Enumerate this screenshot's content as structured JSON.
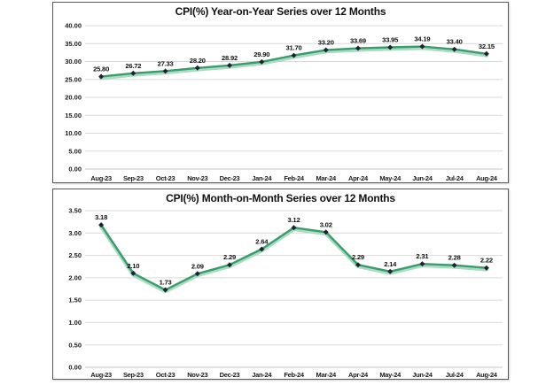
{
  "page": {
    "background": "#ffffff"
  },
  "chart_data": [
    {
      "type": "line",
      "title": "CPI(%) Year-on-Year Series over 12 Months",
      "categories": [
        "Aug-23",
        "Sep-23",
        "Oct-23",
        "Nov-23",
        "Dec-23",
        "Jan-24",
        "Feb-24",
        "Mar-24",
        "Apr-24",
        "May-24",
        "Jun-24",
        "Jul-24",
        "Aug-24"
      ],
      "values": [
        25.8,
        26.72,
        27.33,
        28.2,
        28.92,
        29.9,
        31.7,
        33.2,
        33.69,
        33.95,
        34.19,
        33.4,
        32.15
      ],
      "point_labels": [
        "25.80",
        "26.72",
        "27.33",
        "28.20",
        "28.92",
        "29.90",
        "31.70",
        "33.20",
        "33.69",
        "33.95",
        "34.19",
        "33.40",
        "32.15"
      ],
      "xlabel": "",
      "ylabel": "",
      "ylim": [
        0,
        40
      ],
      "yticks": [
        {
          "value": 40,
          "label": "40.00"
        },
        {
          "value": 35,
          "label": "35.00"
        },
        {
          "value": 30,
          "label": "30.00"
        },
        {
          "value": 25,
          "label": "25.00"
        },
        {
          "value": 20,
          "label": "20.00"
        },
        {
          "value": 15,
          "label": "15.00"
        },
        {
          "value": 10,
          "label": "10.00"
        },
        {
          "value": 5,
          "label": "5.00"
        },
        {
          "value": 0,
          "label": "0.00"
        }
      ],
      "grid": true,
      "legend": "none",
      "colors": {
        "line": "#3a9b6c",
        "halo": "#a9dcc2",
        "marker": "#1b2430",
        "grid": "#d9d9d9",
        "axis": "#c4c4c4",
        "text": "#1a1a1a"
      }
    },
    {
      "type": "line",
      "title": "CPI(%) Month-on-Month Series over 12 Months",
      "categories": [
        "Aug-23",
        "Sep-23",
        "Oct-23",
        "Nov-23",
        "Dec-23",
        "Jan-24",
        "Feb-24",
        "Mar-24",
        "Apr-24",
        "May-24",
        "Jun-24",
        "Jul-24",
        "Aug-24"
      ],
      "values": [
        3.18,
        2.1,
        1.73,
        2.09,
        2.29,
        2.64,
        3.12,
        3.02,
        2.29,
        2.14,
        2.31,
        2.28,
        2.22
      ],
      "point_labels": [
        "3.18",
        "2.10",
        "1.73",
        "2.09",
        "2.29",
        "2.64",
        "3.12",
        "3.02",
        "2.29",
        "2.14",
        "2.31",
        "2.28",
        "2.22"
      ],
      "xlabel": "",
      "ylabel": "",
      "ylim": [
        0,
        3.5
      ],
      "yticks": [
        {
          "value": 3.5,
          "label": "3.50"
        },
        {
          "value": 3.0,
          "label": "3.00"
        },
        {
          "value": 2.5,
          "label": "2.50"
        },
        {
          "value": 2.0,
          "label": "2.00"
        },
        {
          "value": 1.5,
          "label": "1.50"
        },
        {
          "value": 1.0,
          "label": "1.00"
        },
        {
          "value": 0.5,
          "label": "0.50"
        },
        {
          "value": 0.0,
          "label": "0.00"
        }
      ],
      "grid": true,
      "legend": "none",
      "colors": {
        "line": "#3a9b6c",
        "halo": "#a9dcc2",
        "marker": "#1b2430",
        "grid": "#d9d9d9",
        "axis": "#c4c4c4",
        "text": "#1a1a1a"
      }
    }
  ]
}
